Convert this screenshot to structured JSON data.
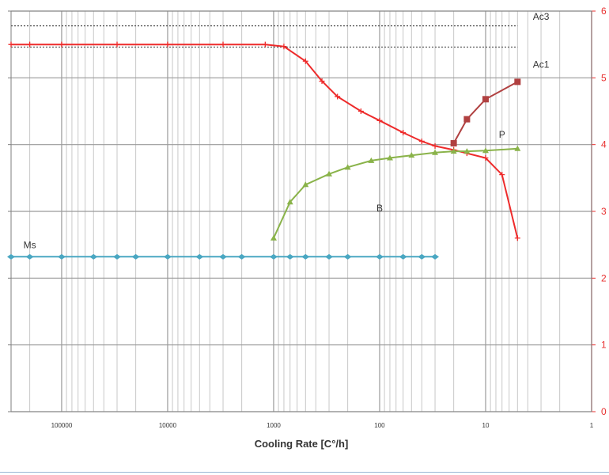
{
  "chart_data": {
    "type": "line",
    "xlabel": "Cooling Rate [C°/h]",
    "x_scale": "log",
    "x_reversed": true,
    "xlim": [
      300000,
      1
    ],
    "x_tick_values": [
      100000,
      10000,
      1000,
      100,
      10,
      1
    ],
    "x_tick_labels": [
      "100000",
      "10000",
      "1000",
      "100",
      "10",
      "1"
    ],
    "y_right_tick_labels": [
      "0",
      "1",
      "2",
      "3",
      "4",
      "5",
      "6"
    ],
    "ylim_right": [
      0,
      6
    ],
    "grid": true,
    "series": [
      {
        "name": "Ac3",
        "color": "#555555",
        "style": "dotted",
        "marker": "none",
        "x": [
          300000,
          5
        ],
        "y": [
          5.78,
          5.78
        ]
      },
      {
        "name": "Ac1",
        "color": "#555555",
        "style": "dotted",
        "marker": "none",
        "x": [
          300000,
          5
        ],
        "y": [
          5.46,
          5.46
        ]
      },
      {
        "name": "",
        "color": "#ee2b2b",
        "style": "solid",
        "marker": "plus",
        "x": [
          300000,
          200000,
          100000,
          30000,
          10000,
          3000,
          1200,
          800,
          500,
          350,
          250,
          150,
          100,
          60,
          40,
          30,
          20,
          15,
          10,
          7,
          5
        ],
        "y": [
          5.5,
          5.5,
          5.5,
          5.5,
          5.5,
          5.5,
          5.5,
          5.47,
          5.25,
          4.95,
          4.72,
          4.5,
          4.36,
          4.18,
          4.05,
          3.98,
          3.92,
          3.87,
          3.8,
          3.55,
          2.6
        ]
      },
      {
        "name": "P",
        "color": "#b04040",
        "style": "solid",
        "marker": "square",
        "x": [
          20,
          15,
          10,
          5
        ],
        "y": [
          4.02,
          4.38,
          4.68,
          4.94
        ]
      },
      {
        "name": "B",
        "color": "#8ab34a",
        "style": "solid",
        "marker": "triangle",
        "x": [
          1000,
          700,
          500,
          300,
          200,
          120,
          80,
          50,
          30,
          20,
          15,
          10,
          5
        ],
        "y": [
          2.6,
          3.14,
          3.4,
          3.56,
          3.66,
          3.76,
          3.8,
          3.84,
          3.88,
          3.9,
          3.9,
          3.91,
          3.94
        ]
      },
      {
        "name": "Ms",
        "color": "#4aa7c2",
        "style": "solid",
        "marker": "diamond",
        "x": [
          300000,
          200000,
          100000,
          50000,
          30000,
          20000,
          10000,
          5000,
          3000,
          2000,
          1000,
          700,
          500,
          300,
          200,
          100,
          60,
          40,
          30
        ],
        "y": [
          2.32,
          2.32,
          2.32,
          2.32,
          2.32,
          2.32,
          2.32,
          2.32,
          2.32,
          2.32,
          2.32,
          2.32,
          2.32,
          2.32,
          2.32,
          2.32,
          2.32,
          2.32,
          2.32
        ]
      }
    ],
    "annotations": [
      {
        "text": "Ac3",
        "x": 3,
        "y": 5.87
      },
      {
        "text": "Ac1",
        "x": 3,
        "y": 5.15
      },
      {
        "text": "P",
        "x": 7,
        "y": 4.1
      },
      {
        "text": "B",
        "x": 100,
        "y": 3.0
      },
      {
        "text": "Ms",
        "x": 200000,
        "y": 2.45
      }
    ]
  }
}
